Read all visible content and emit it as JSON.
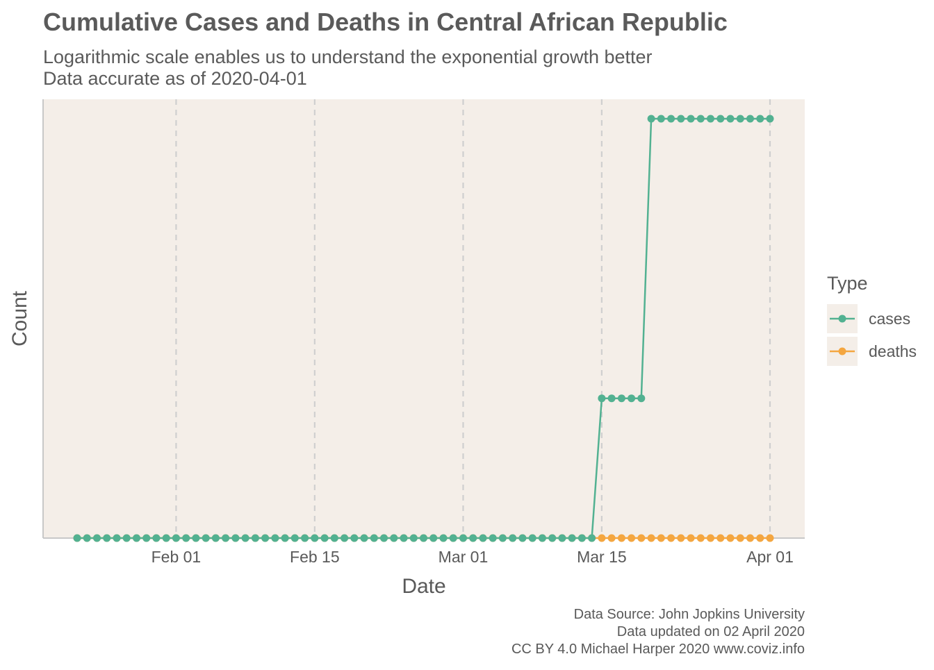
{
  "colors": {
    "panel_bg": "#f4eee8",
    "grid": "#cfcfcf",
    "axis": "#c8c8c8",
    "cases": "#52b191",
    "deaths": "#f4a640"
  },
  "chart_data": {
    "type": "line",
    "title": "Cumulative Cases and Deaths in Central African Republic",
    "subtitle_lines": [
      "Logarithmic scale enables us to understand the exponential growth better",
      "Data accurate as of 2020-04-01"
    ],
    "xlabel": "Date",
    "ylabel": "Count",
    "x_range": [
      "2020-01-22",
      "2020-04-01"
    ],
    "y_scale": "log",
    "y_range": [
      0,
      3
    ],
    "x_ticks": [
      {
        "date": "2020-02-01",
        "label": "Feb 01"
      },
      {
        "date": "2020-02-15",
        "label": "Feb 15"
      },
      {
        "date": "2020-03-01",
        "label": "Mar 01"
      },
      {
        "date": "2020-03-15",
        "label": "Mar 15"
      },
      {
        "date": "2020-04-01",
        "label": "Apr 01"
      }
    ],
    "grid": {
      "vertical": "dashed",
      "horizontal": false
    },
    "legend": {
      "title": "Type",
      "placement": "right"
    },
    "series": [
      {
        "name": "cases",
        "color_key": "cases",
        "points": [
          {
            "start": "2020-01-22",
            "end": "2020-03-14",
            "value": 0
          },
          {
            "start": "2020-03-15",
            "end": "2020-03-19",
            "value": 1
          },
          {
            "start": "2020-03-20",
            "end": "2020-04-01",
            "value": 3
          }
        ]
      },
      {
        "name": "deaths",
        "color_key": "deaths",
        "points": [
          {
            "start": "2020-01-22",
            "end": "2020-04-01",
            "value": 0
          }
        ]
      }
    ]
  },
  "caption_lines": [
    "Data Source: John Jopkins University",
    "Data updated on 02 April 2020",
    "CC BY 4.0 Michael Harper 2020 www.coviz.info"
  ]
}
